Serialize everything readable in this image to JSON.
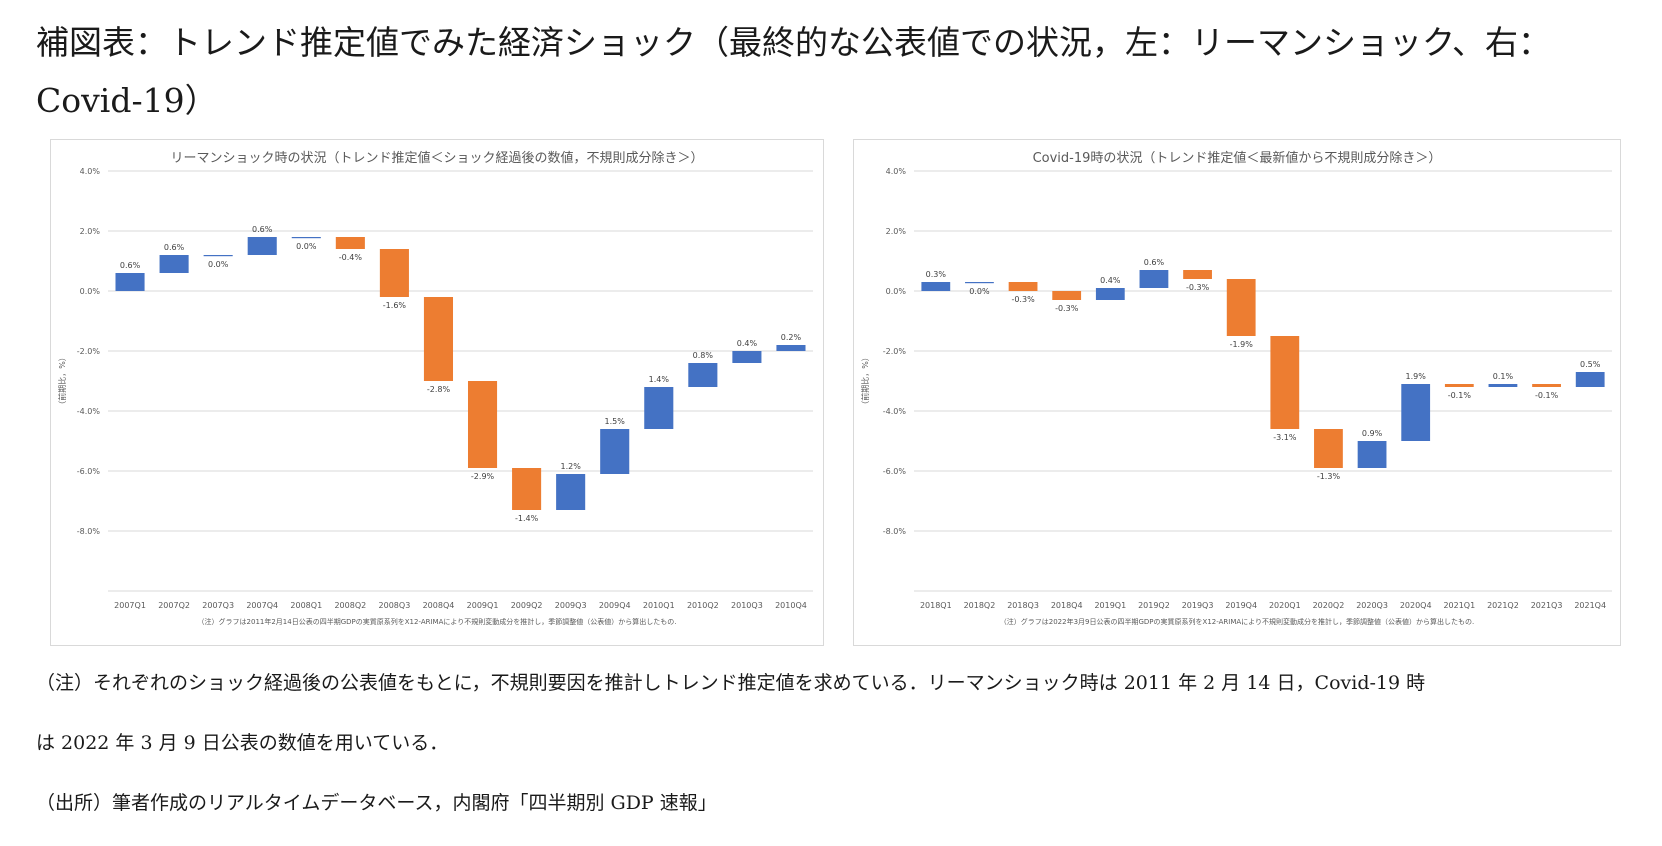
{
  "title": "補図表：トレンド推定値でみた経済ショック（最終的な公表値での状況，左：リーマンショック、右：Covid-19）",
  "colors": {
    "positive": "#4472C4",
    "negative": "#ED7D31",
    "grid": "#d9d9d9",
    "axis_text": "#595959"
  },
  "chart_data": [
    {
      "type": "bar",
      "subtype": "waterfall",
      "title": "リーマンショック時の状況（トレンド推定値＜ショック経過後の数値，不規則成分除き＞）",
      "ylabel": "（前期比，%）",
      "ylim": [
        -10,
        4
      ],
      "ytick_values": [
        4,
        2,
        0,
        -2,
        -4,
        -6,
        -8
      ],
      "yticks": [
        "4.0%",
        "2.0%",
        "0.0%",
        "-2.0%",
        "-4.0%",
        "-6.0%",
        "-8.0%"
      ],
      "grid": true,
      "categories": [
        "2007Q1",
        "2007Q2",
        "2007Q3",
        "2007Q4",
        "2008Q1",
        "2008Q2",
        "2008Q3",
        "2008Q4",
        "2009Q1",
        "2009Q2",
        "2009Q3",
        "2009Q4",
        "2010Q1",
        "2010Q2",
        "2010Q3",
        "2010Q4"
      ],
      "values": [
        0.6,
        0.6,
        0.0,
        0.6,
        0.0,
        -0.4,
        -1.6,
        -2.8,
        -2.9,
        -1.4,
        1.2,
        1.5,
        1.4,
        0.8,
        0.4,
        0.2
      ],
      "data_labels": [
        "0.6%",
        "0.6%",
        "0.0%",
        "0.6%",
        "0.0%",
        "-0.4%",
        "-1.6%",
        "-2.8%",
        "-2.9%",
        "-1.4%",
        "1.2%",
        "1.5%",
        "1.4%",
        "0.8%",
        "0.4%",
        "0.2%"
      ],
      "note": "（注）グラフは2011年2月14日公表の四半期GDPの実質原系列をX12-ARIMAにより不規則変動成分を推計し，季節調整値（公表値）から算出したもの."
    },
    {
      "type": "bar",
      "subtype": "waterfall",
      "title": "Covid-19時の状況（トレンド推定値＜最新値から不規則成分除き＞）",
      "ylabel": "（前期比，%）",
      "ylim": [
        -10,
        4
      ],
      "ytick_values": [
        4,
        2,
        0,
        -2,
        -4,
        -6,
        -8
      ],
      "yticks": [
        "4.0%",
        "2.0%",
        "0.0%",
        "-2.0%",
        "-4.0%",
        "-6.0%",
        "-8.0%"
      ],
      "grid": true,
      "categories": [
        "2018Q1",
        "2018Q2",
        "2018Q3",
        "2018Q4",
        "2019Q1",
        "2019Q2",
        "2019Q3",
        "2019Q4",
        "2020Q1",
        "2020Q2",
        "2020Q3",
        "2020Q4",
        "2021Q1",
        "2021Q2",
        "2021Q3",
        "2021Q4"
      ],
      "values": [
        0.3,
        0.0,
        -0.3,
        -0.3,
        0.4,
        0.6,
        -0.3,
        -1.9,
        -3.1,
        -1.3,
        0.9,
        1.9,
        -0.1,
        0.1,
        -0.1,
        0.5
      ],
      "data_labels": [
        "0.3%",
        "0.0%",
        "-0.3%",
        "-0.3%",
        "0.4%",
        "0.6%",
        "-0.3%",
        "-1.9%",
        "-3.1%",
        "-1.3%",
        "0.9%",
        "1.9%",
        "-0.1%",
        "0.1%",
        "-0.1%",
        "0.5%"
      ],
      "note": "（注）グラフは2022年3月9日公表の四半期GDPの実質原系列をX12-ARIMAにより不規則変動成分を推計し，季節調整値（公表値）から算出したもの."
    }
  ],
  "notes": {
    "note_line1": "（注）それぞれのショック経過後の公表値をもとに，不規則要因を推計しトレンド推定値を求めている．リーマンショック時は 2011 年 2 月 14 日，Covid-19 時",
    "note_line2": "は 2022 年 3 月 9 日公表の数値を用いている．",
    "source": "（出所）筆者作成のリアルタイムデータベース，内閣府「四半期別 GDP 速報」"
  }
}
